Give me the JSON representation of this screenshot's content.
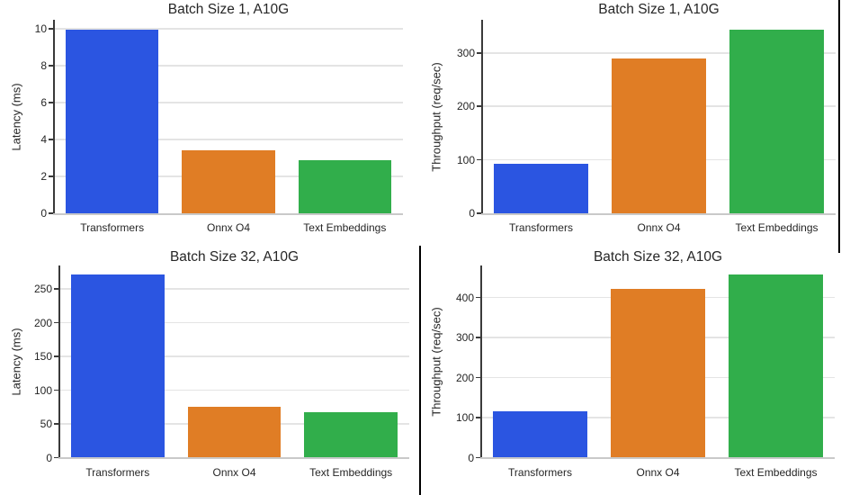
{
  "figure": {
    "background": "#ffffff",
    "bar_colors": [
      "#2b55e1",
      "#e07d25",
      "#31ae4b"
    ],
    "grid_color": "#e4e4e4",
    "left_spine_color": "#3a3a3a",
    "bottom_spine_color": "#c9c9c9",
    "text_color": "#262626",
    "stitch_line_color": "#000000"
  },
  "chart_data": [
    {
      "id": "batch1-latency",
      "type": "bar",
      "title": "Batch Size 1, A10G",
      "xlabel": "",
      "ylabel": "Latency (ms)",
      "categories": [
        "Transformers",
        "Onnx O4",
        "Text Embeddings"
      ],
      "values": [
        9.95,
        3.4,
        2.9
      ],
      "yticks": [
        0,
        2,
        4,
        6,
        8,
        10
      ],
      "ylim": [
        0,
        10.5
      ],
      "grid": true,
      "legend": "none"
    },
    {
      "id": "batch1-throughput",
      "type": "bar",
      "title": "Batch Size 1, A10G",
      "xlabel": "",
      "ylabel": "Throughput (req/sec)",
      "categories": [
        "Transformers",
        "Onnx O4",
        "Text Embeddings"
      ],
      "values": [
        93,
        290,
        344
      ],
      "yticks": [
        0,
        100,
        200,
        300
      ],
      "ylim": [
        0,
        362
      ],
      "grid": true,
      "legend": "none"
    },
    {
      "id": "batch32-latency",
      "type": "bar",
      "title": "Batch Size 32, A10G",
      "xlabel": "",
      "ylabel": "Latency (ms)",
      "categories": [
        "Transformers",
        "Onnx O4",
        "Text Embeddings"
      ],
      "values": [
        271,
        75,
        68
      ],
      "yticks": [
        0,
        50,
        100,
        150,
        200,
        250
      ],
      "ylim": [
        0,
        285
      ],
      "grid": true,
      "legend": "none"
    },
    {
      "id": "batch32-throughput",
      "type": "bar",
      "title": "Batch Size 32, A10G",
      "xlabel": "",
      "ylabel": "Throughput (req/sec)",
      "categories": [
        "Transformers",
        "Onnx O4",
        "Text Embeddings"
      ],
      "values": [
        115,
        421,
        457
      ],
      "yticks": [
        0,
        100,
        200,
        300,
        400
      ],
      "ylim": [
        0,
        480
      ],
      "grid": true,
      "legend": "none"
    }
  ]
}
